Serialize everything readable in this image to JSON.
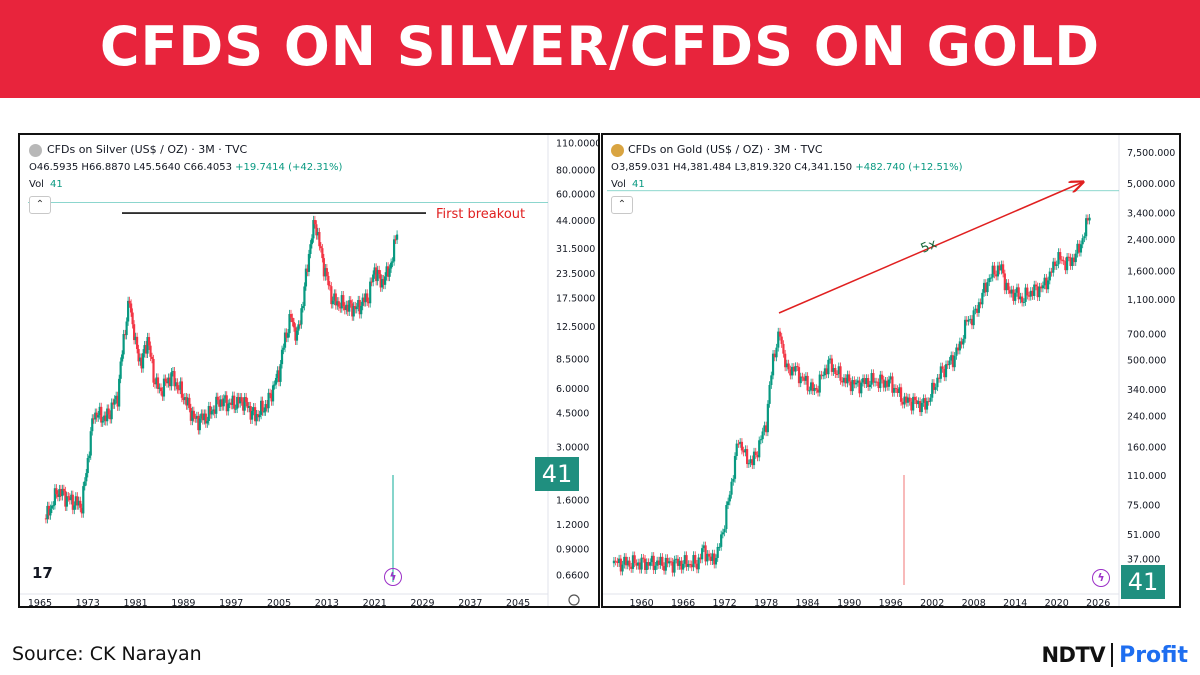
{
  "header": {
    "title": "CFDS ON SILVER/CFDS ON GOLD",
    "bg_color": "#e8243c"
  },
  "footer": {
    "source": "Source: CK Narayan",
    "brand_left": "NDTV",
    "brand_right": "Profit"
  },
  "colors": {
    "up": "#089981",
    "down": "#f23645",
    "annotation": "#e02020"
  },
  "chart_data": [
    {
      "type": "candlestick",
      "scale": "log",
      "title": "CFDs on Silver (US$ / OZ) · 3M · TVC",
      "ohlc_label": {
        "O": "46.5935",
        "H": "66.8870",
        "L": "45.5640",
        "C": "66.4053",
        "change": "+19.7414 (+42.31%)"
      },
      "volume_label": "Vol",
      "volume_value": "41",
      "badge": "41",
      "icons": [
        "tradingview-logo-icon",
        "collapse-chevron-icon",
        "lightning-icon",
        "settings-icon"
      ],
      "ylabels": [
        "110.0000",
        "80.0000",
        "60.0000",
        "44.0000",
        "31.5000",
        "23.5000",
        "17.5000",
        "12.5000",
        "8.5000",
        "6.0000",
        "4.5000",
        "3.0000",
        "1.6000",
        "1.2000",
        "0.9000",
        "0.6600"
      ],
      "xlabels": [
        "1965",
        "1973",
        "1981",
        "1989",
        "1997",
        "2005",
        "2013",
        "2021",
        "2029",
        "2037",
        "2045"
      ],
      "ylim": [
        0.6,
        110
      ],
      "xlim": [
        1963,
        2050
      ],
      "series": [
        {
          "x": [
            1966,
            1968,
            1970,
            1972,
            1974,
            1976,
            1978,
            1979,
            1980,
            1981,
            1982,
            1983,
            1984,
            1985,
            1987,
            1989,
            1991,
            1993,
            1995,
            1997,
            1999,
            2001,
            2003,
            2005,
            2006,
            2007,
            2008,
            2009,
            2010,
            2011,
            2012,
            2013,
            2014,
            2016,
            2018,
            2020,
            2021,
            2022,
            2023,
            2024,
            2025
          ],
          "y": [
            1.29,
            1.8,
            1.6,
            1.5,
            4.5,
            4.2,
            5.5,
            11,
            17,
            10,
            8,
            11,
            7,
            5.8,
            7,
            5.5,
            4.1,
            4.3,
            5.2,
            5,
            5.2,
            4.3,
            5,
            7.3,
            11,
            14,
            11,
            17,
            30,
            44,
            30,
            22,
            17,
            16,
            15.5,
            18,
            25,
            21,
            23,
            28,
            46
          ]
        }
      ],
      "breakout_level": 48,
      "annotations": [
        {
          "text": "First breakout"
        }
      ]
    },
    {
      "type": "candlestick",
      "scale": "log",
      "title": "CFDs on Gold (US$ / OZ) · 3M · TVC",
      "ohlc_label": {
        "O": "3,859.031",
        "H": "4,381.484",
        "L": "3,819.320",
        "C": "4,341.150",
        "change": "+482.740 (+12.51%)"
      },
      "volume_label": "Vol",
      "volume_value": "41",
      "badge": "41",
      "icons": [
        "tradingview-gold-icon",
        "collapse-chevron-icon",
        "lightning-icon"
      ],
      "ylabels": [
        "7,500.000",
        "5,000.000",
        "3,400.000",
        "2,400.000",
        "1,600.000",
        "1,100.000",
        "700.000",
        "500.000",
        "340.000",
        "240.000",
        "160.000",
        "110.000",
        "75.000",
        "51.000",
        "37.000"
      ],
      "xlabels": [
        "1960",
        "1966",
        "1972",
        "1978",
        "1984",
        "1990",
        "1996",
        "2002",
        "2008",
        "2014",
        "2020",
        "2026"
      ],
      "ylim": [
        30,
        8500
      ],
      "xlim": [
        1955,
        2029
      ],
      "series": [
        {
          "x": [
            1956,
            1960,
            1964,
            1968,
            1969,
            1970,
            1971,
            1972,
            1973,
            1974,
            1975,
            1976,
            1977,
            1978,
            1979,
            1980,
            1981,
            1982,
            1983,
            1985,
            1987,
            1989,
            1991,
            1993,
            1996,
            1998,
            1999,
            2001,
            2002,
            2003,
            2005,
            2006,
            2007,
            2008,
            2009,
            2010,
            2011,
            2012,
            2013,
            2014,
            2015,
            2016,
            2018,
            2019,
            2020,
            2021,
            2022,
            2023,
            2024,
            2025
          ],
          "y": [
            35,
            35,
            35,
            35,
            42,
            36,
            40,
            60,
            100,
            180,
            140,
            130,
            165,
            220,
            520,
            700,
            430,
            450,
            400,
            330,
            480,
            390,
            360,
            380,
            370,
            290,
            290,
            275,
            330,
            410,
            510,
            600,
            830,
            880,
            1100,
            1400,
            1600,
            1650,
            1200,
            1200,
            1100,
            1200,
            1300,
            1500,
            1900,
            1800,
            1800,
            2050,
            2600,
            3860
          ]
        }
      ],
      "annotations": [
        {
          "text": "5x"
        }
      ]
    }
  ]
}
